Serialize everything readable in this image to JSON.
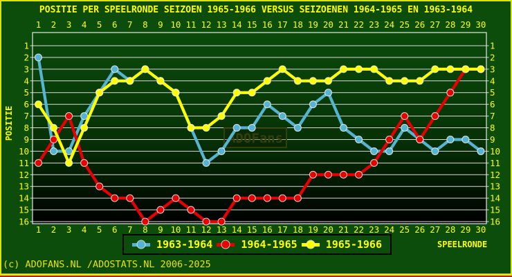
{
  "title": "POSITIE PER SPEELRONDE SEIZOEN 1965-1966 VERSUS SEIZOENEN 1964-1965 EN 1963-1964",
  "watermark": "ADOFans",
  "copyright": "(c) ADOFANS.NL /ADOSTATS.NL 2006-2025",
  "colors": {
    "background": "#0c4d0c",
    "frame": "#d9e700",
    "frame_bottom": "#b82300",
    "label_text": "#ffff00",
    "grid": "#d9d9d9",
    "plot_border": "#e6e6e6",
    "plot_gradient_top": "#0b4a0b",
    "plot_gradient_bottom": "#000000",
    "watermark_color": "#394208",
    "legend_border": "#000000"
  },
  "chart_data": {
    "type": "line",
    "title": "POSITIE PER SPEELRONDE SEIZOEN 1965-1966 VERSUS SEIZOENEN 1964-1965 EN 1963-1964",
    "xlabel": "SPEELRONDE",
    "ylabel": "POSITIE",
    "x": [
      1,
      2,
      3,
      4,
      5,
      6,
      7,
      8,
      9,
      10,
      11,
      12,
      13,
      14,
      15,
      16,
      17,
      18,
      19,
      20,
      21,
      22,
      23,
      24,
      25,
      26,
      27,
      28,
      29,
      30
    ],
    "y_ticks": [
      1,
      2,
      3,
      4,
      5,
      6,
      7,
      8,
      9,
      10,
      11,
      12,
      13,
      14,
      15,
      16
    ],
    "ylim": [
      16,
      1
    ],
    "y_axis_inverted": true,
    "grid": "horizontal",
    "legend_position": "bottom",
    "x_labels_shown": "top and bottom",
    "y_labels_shown": "left and right",
    "series": [
      {
        "name": "1963-1964",
        "color": "#56b4d3",
        "values": [
          2,
          10,
          10,
          7,
          5,
          3,
          4,
          3,
          4,
          5,
          8,
          11,
          10,
          8,
          8,
          6,
          7,
          8,
          6,
          5,
          8,
          9,
          10,
          10,
          8,
          9,
          10,
          9,
          9,
          10
        ]
      },
      {
        "name": "1964-1965",
        "color": "#e60000",
        "values": [
          11,
          9,
          7,
          11,
          13,
          14,
          14,
          16,
          15,
          14,
          15,
          16,
          16,
          14,
          14,
          14,
          14,
          14,
          12,
          12,
          12,
          12,
          11,
          9,
          7,
          9,
          7,
          5,
          3,
          3
        ]
      },
      {
        "name": "1965-1966",
        "color": "#ffff00",
        "values": [
          6,
          8,
          11,
          8,
          5,
          4,
          4,
          3,
          4,
          5,
          8,
          8,
          7,
          5,
          5,
          4,
          3,
          4,
          4,
          4,
          3,
          3,
          3,
          4,
          4,
          4,
          3,
          3,
          3,
          3
        ]
      }
    ]
  }
}
